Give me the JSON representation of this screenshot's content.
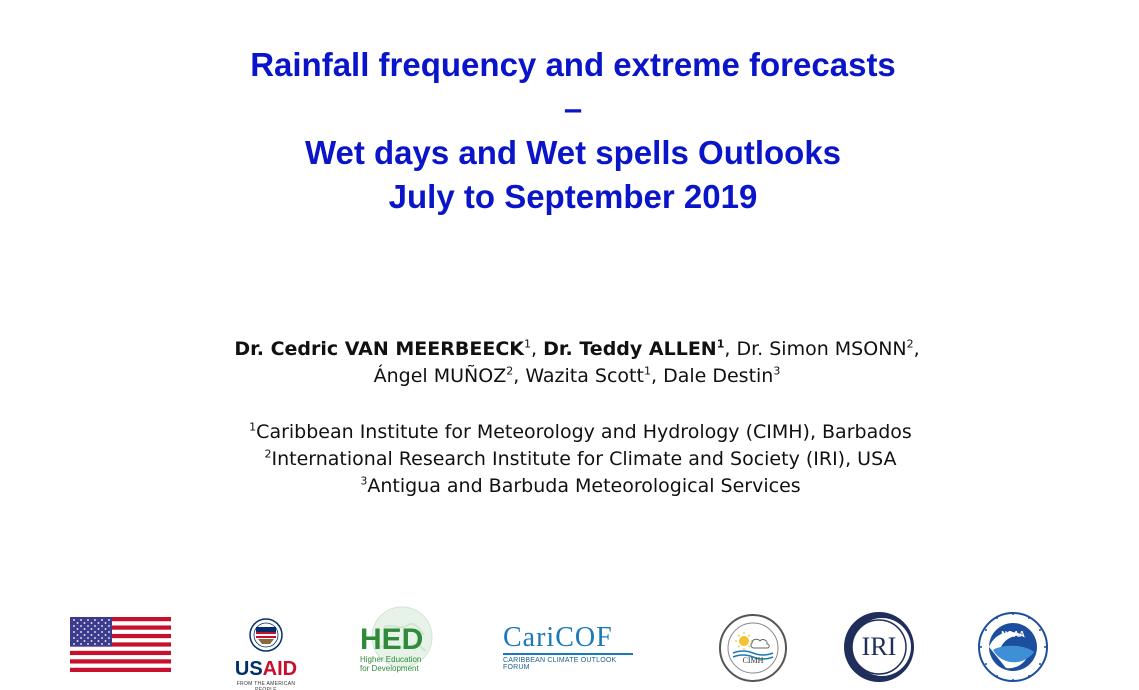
{
  "title": {
    "line1": "Rainfall frequency and extreme forecasts",
    "line2": "–",
    "line3": "Wet days and Wet spells Outlooks",
    "line4": "July to September 2019"
  },
  "authors": {
    "a1_name": "Dr. Cedric VAN MEERBEECK",
    "a1_sup": "1",
    "a2_name": "Dr. Teddy ALLEN",
    "a2_sup": "1",
    "a3_name": "Dr. Simon MSONN",
    "a3_sup": "2",
    "a4_name": "Ángel MUÑOZ",
    "a4_sup": "2",
    "a5_name": "Wazita Scott",
    "a5_sup": "1",
    "a6_name": "Dale Destin",
    "a6_sup": "3"
  },
  "affiliations": [
    {
      "sup": "1",
      "text": "Caribbean Institute for Meteorology and Hydrology (CIMH), Barbados"
    },
    {
      "sup": "2",
      "text": "International Research Institute for Climate and Society (IRI), USA"
    },
    {
      "sup": "3",
      "text": "Antigua and Barbuda Meteorological Services"
    }
  ],
  "logos": {
    "usaid_text": "USAID",
    "usaid_tag": "FROM THE AMERICAN PEOPLE",
    "hed_main": "HED",
    "hed_sub1": "Higher Education",
    "hed_sub2": "for Development",
    "caricof_main": "CariCOF",
    "caricof_sub": "CARIBBEAN CLIMATE OUTLOOK FORUM",
    "cimh_text": "CIMH",
    "iri_text": "IRI",
    "noaa_text": "NOAA"
  },
  "colors": {
    "title": "#0A14C8",
    "body_text": "#111111",
    "usaid_red": "#C8102E",
    "usaid_blue": "#002F6C",
    "hed_green": "#2E8B3A",
    "caricof_blue": "#1B79B8",
    "iri_navy": "#1F2E5A",
    "noaa_blue": "#1D4E9E"
  }
}
